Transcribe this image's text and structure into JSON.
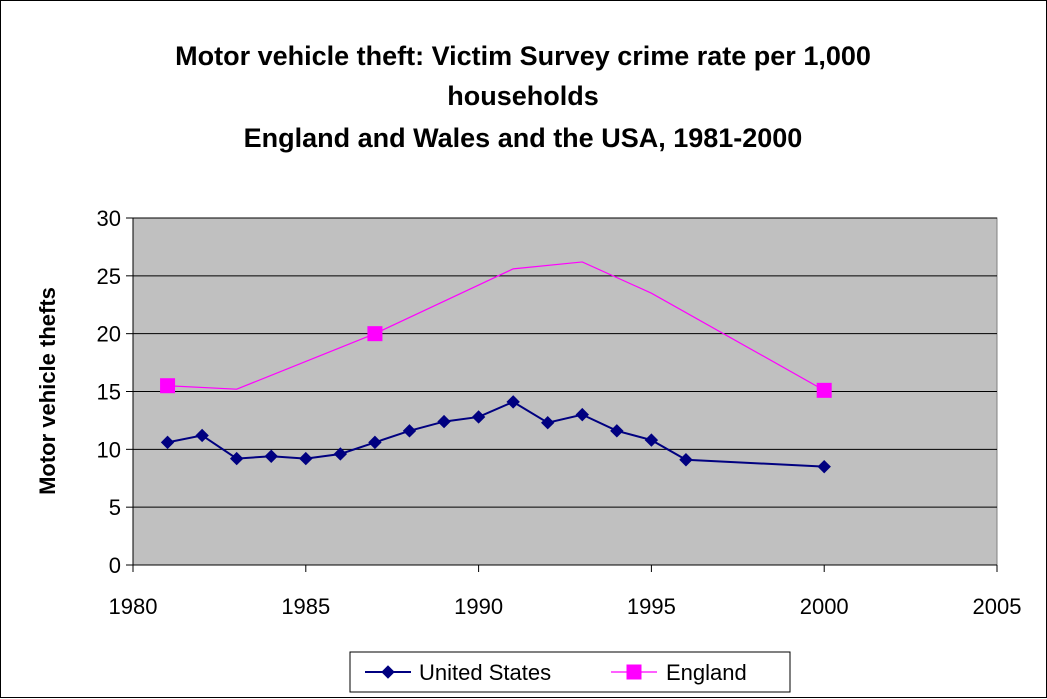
{
  "chart_data": {
    "type": "line",
    "title_lines": [
      "Motor vehicle theft: Victim Survey crime rate per 1,000",
      "households",
      "England and Wales and the USA, 1981-2000"
    ],
    "xlabel": "",
    "ylabel": "Motor vehicle thefts",
    "xlim": [
      1980,
      2005
    ],
    "ylim": [
      0,
      30
    ],
    "xticks": [
      "1980",
      "1985",
      "1990",
      "1995",
      "2000",
      "2005"
    ],
    "yticks": [
      "0",
      "5",
      "10",
      "15",
      "20",
      "25",
      "30"
    ],
    "grid": "horizontal",
    "plot_background": "#C0C0C0",
    "legend_position": "bottom",
    "series": [
      {
        "name": "United States",
        "color": "#000080",
        "marker": "diamond",
        "x": [
          1981,
          1982,
          1983,
          1984,
          1985,
          1986,
          1987,
          1988,
          1989,
          1990,
          1991,
          1992,
          1993,
          1994,
          1995,
          1996,
          2000
        ],
        "y": [
          10.6,
          11.2,
          9.2,
          9.4,
          9.2,
          9.6,
          10.6,
          11.6,
          12.4,
          12.8,
          14.1,
          12.3,
          13.0,
          11.6,
          10.8,
          9.1,
          8.5
        ]
      },
      {
        "name": "England",
        "color": "#FF00FF",
        "marker": "square",
        "x": [
          1981,
          1983,
          1987,
          1991,
          1993,
          1995,
          2000
        ],
        "y": [
          15.5,
          15.2,
          20.0,
          25.6,
          26.2,
          23.5,
          15.1
        ],
        "marked": [
          true,
          false,
          true,
          false,
          false,
          false,
          true
        ]
      }
    ]
  }
}
